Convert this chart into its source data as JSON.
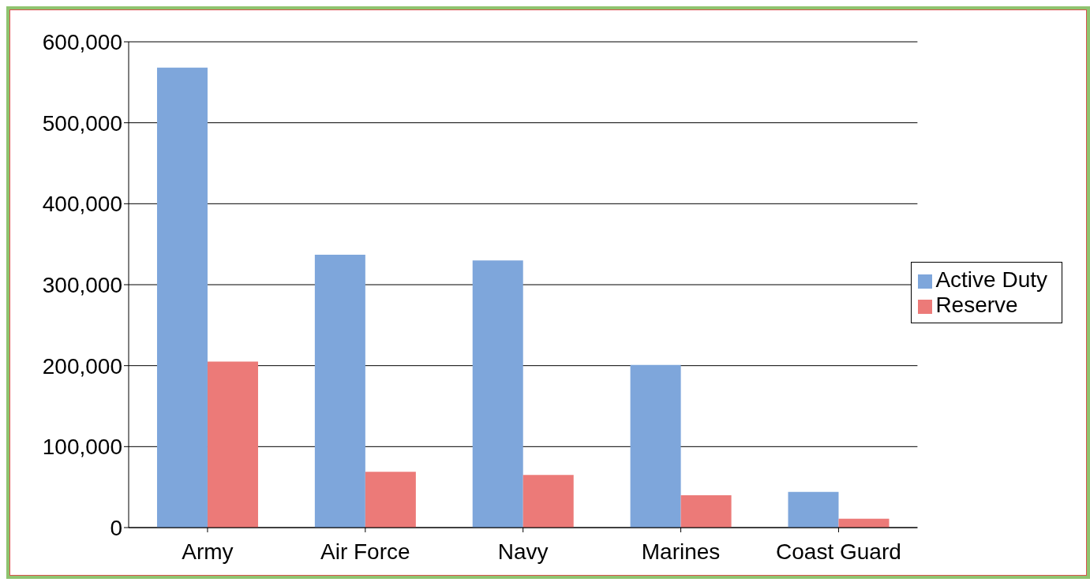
{
  "chart_data": {
    "type": "bar",
    "categories": [
      "Army",
      "Air Force",
      "Navy",
      "Marines",
      "Coast Guard"
    ],
    "series": [
      {
        "name": "Active Duty",
        "color": "#7ea6db",
        "values": [
          568000,
          337000,
          330000,
          201000,
          44000
        ]
      },
      {
        "name": "Reserve",
        "color": "#ec7a78",
        "values": [
          205000,
          69000,
          65000,
          40000,
          11000
        ]
      }
    ],
    "ylim": [
      0,
      600000
    ],
    "yticks": [
      {
        "value": 0,
        "label": "0"
      },
      {
        "value": 100000,
        "label": "100,000"
      },
      {
        "value": 200000,
        "label": "200,000"
      },
      {
        "value": 300000,
        "label": "300,000"
      },
      {
        "value": 400000,
        "label": "400,000"
      },
      {
        "value": 500000,
        "label": "500,000"
      },
      {
        "value": 600000,
        "label": "600,000"
      }
    ],
    "grid": "y",
    "legend": "right"
  }
}
